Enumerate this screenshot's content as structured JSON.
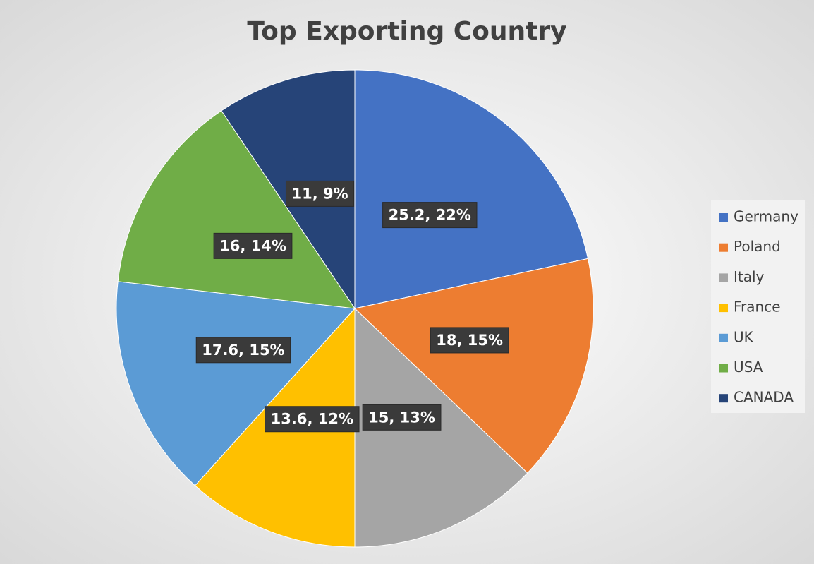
{
  "chart_data": {
    "type": "pie",
    "title": "Top Exporting Country",
    "categories": [
      "Germany",
      "Poland",
      "Italy",
      "France",
      "UK",
      "USA",
      "CANADA"
    ],
    "values": [
      25.2,
      18,
      15,
      13.6,
      17.6,
      16,
      11
    ],
    "value_labels": [
      "25.2, 22%",
      "18, 15%",
      "15, 13%",
      "13.6, 12%",
      "17.6, 15%",
      "16, 14%",
      "11, 9%"
    ],
    "colors": [
      "#4472c4",
      "#ed7d31",
      "#a5a5a5",
      "#ffc000",
      "#5b9bd5",
      "#70ad47",
      "#264478"
    ],
    "legend": "right"
  }
}
